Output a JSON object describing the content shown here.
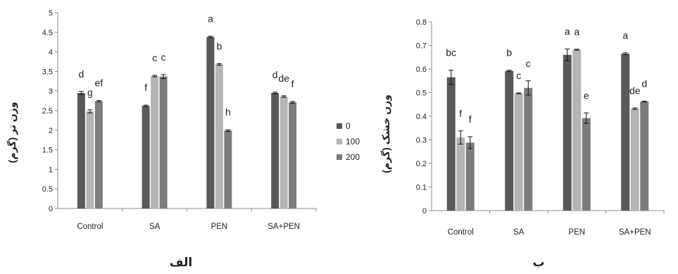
{
  "colors": {
    "series": [
      "#595959",
      "#b4b4b4",
      "#7c7c7c"
    ],
    "axis": "#8c8c8c",
    "text": "#222222"
  },
  "legend": {
    "placement": "between-charts",
    "items": [
      "0",
      "100",
      "200"
    ]
  },
  "chart_data": [
    {
      "type": "bar",
      "panel_label": "الف",
      "ylabel": "وزن تر (گرم)",
      "xlabel": "",
      "title": "",
      "categories": [
        "Control",
        "SA",
        "PEN",
        "SA+PEN"
      ],
      "ylim": [
        0,
        5
      ],
      "yticks": [
        "0",
        "0.5",
        "1",
        "1.5",
        "2",
        "2.5",
        "3",
        "3.5",
        "4",
        "4.5",
        "5"
      ],
      "grid": false,
      "series": [
        {
          "name": "0",
          "values": [
            2.95,
            2.62,
            4.38,
            2.95
          ],
          "errors": [
            0.04,
            0.02,
            0.02,
            0.02
          ],
          "letters": [
            "d",
            "f",
            "a",
            "d"
          ]
        },
        {
          "name": "100",
          "values": [
            2.48,
            3.38,
            3.68,
            2.86
          ],
          "errors": [
            0.04,
            0.02,
            0.02,
            0.02
          ],
          "letters": [
            "g",
            "c",
            "b",
            "de"
          ]
        },
        {
          "name": "200",
          "values": [
            2.74,
            3.37,
            1.99,
            2.71
          ],
          "errors": [
            0.02,
            0.05,
            0.02,
            0.02
          ],
          "letters": [
            "ef",
            "c",
            "h",
            "f"
          ]
        }
      ]
    },
    {
      "type": "bar",
      "panel_label": "ب",
      "ylabel": "وزن خشک (گرم)",
      "xlabel": "",
      "title": "",
      "categories": [
        "Control",
        "SA",
        "PEN",
        "SA+PEN"
      ],
      "ylim": [
        0,
        0.8
      ],
      "yticks": [
        "0",
        "0.1",
        "0.2",
        "0.3",
        "0.4",
        "0.5",
        "0.6",
        "0.7",
        "0.8"
      ],
      "grid": false,
      "series": [
        {
          "name": "0",
          "values": [
            0.565,
            0.592,
            0.66,
            0.665
          ],
          "errors": [
            0.03,
            0.003,
            0.025,
            0.004
          ],
          "letters": [
            "bc",
            "b",
            "a",
            "a"
          ]
        },
        {
          "name": "100",
          "values": [
            0.31,
            0.497,
            0.682,
            0.432
          ],
          "errors": [
            0.028,
            0.002,
            0.002,
            0.003
          ],
          "letters": [
            "f",
            "c",
            "a",
            "de"
          ]
        },
        {
          "name": "200",
          "values": [
            0.288,
            0.52,
            0.392,
            0.462
          ],
          "errors": [
            0.025,
            0.03,
            0.022,
            0.002
          ],
          "letters": [
            "f",
            "c",
            "e",
            "d"
          ]
        }
      ]
    }
  ]
}
